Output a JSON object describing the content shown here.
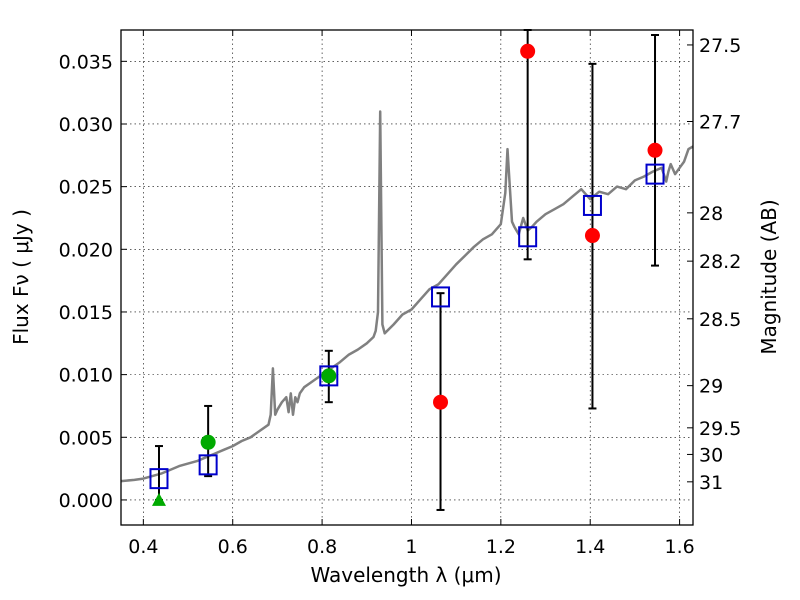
{
  "chart_data": {
    "type": "scatter",
    "title": "",
    "xlabel": "Wavelength  λ (μm)",
    "ylabel": "Flux  Fν  ( μJy )",
    "ylabel_right": "Magnitude (AB)",
    "xlim": [
      0.35,
      1.63
    ],
    "ylim": [
      -0.002,
      0.0375
    ],
    "grid": true,
    "x_ticks": [
      {
        "value": 0.4,
        "label": "0.4"
      },
      {
        "value": 0.6,
        "label": "0.6"
      },
      {
        "value": 0.8,
        "label": "0.8"
      },
      {
        "value": 1.0,
        "label": "1"
      },
      {
        "value": 1.2,
        "label": "1.2"
      },
      {
        "value": 1.4,
        "label": "1.4"
      },
      {
        "value": 1.6,
        "label": "1.6"
      }
    ],
    "y_ticks": [
      {
        "value": 0.0,
        "label": "0.000"
      },
      {
        "value": 0.005,
        "label": "0.005"
      },
      {
        "value": 0.01,
        "label": "0.010"
      },
      {
        "value": 0.015,
        "label": "0.015"
      },
      {
        "value": 0.02,
        "label": "0.020"
      },
      {
        "value": 0.025,
        "label": "0.025"
      },
      {
        "value": 0.03,
        "label": "0.030"
      },
      {
        "value": 0.035,
        "label": "0.035"
      }
    ],
    "right_ticks": [
      {
        "value": 27.5,
        "label": "27.5"
      },
      {
        "value": 27.7,
        "label": "27.7"
      },
      {
        "value": 28,
        "label": "28"
      },
      {
        "value": 28.2,
        "label": "28.2"
      },
      {
        "value": 28.5,
        "label": "28.5"
      },
      {
        "value": 29,
        "label": "29"
      },
      {
        "value": 29.5,
        "label": "29.5"
      },
      {
        "value": 30,
        "label": "30"
      },
      {
        "value": 31,
        "label": "31"
      }
    ],
    "spectrum": {
      "color": "#808080",
      "x": [
        0.35,
        0.38,
        0.4,
        0.42,
        0.44,
        0.46,
        0.48,
        0.5,
        0.52,
        0.54,
        0.56,
        0.58,
        0.6,
        0.62,
        0.64,
        0.66,
        0.68,
        0.685,
        0.69,
        0.695,
        0.7,
        0.71,
        0.72,
        0.725,
        0.73,
        0.735,
        0.74,
        0.745,
        0.75,
        0.76,
        0.78,
        0.8,
        0.82,
        0.84,
        0.86,
        0.88,
        0.9,
        0.915,
        0.92,
        0.925,
        0.93,
        0.935,
        0.94,
        0.96,
        0.98,
        1.0,
        1.02,
        1.04,
        1.06,
        1.08,
        1.1,
        1.12,
        1.14,
        1.16,
        1.18,
        1.2,
        1.21,
        1.215,
        1.22,
        1.225,
        1.23,
        1.24,
        1.25,
        1.26,
        1.27,
        1.28,
        1.3,
        1.32,
        1.34,
        1.36,
        1.38,
        1.4,
        1.42,
        1.44,
        1.46,
        1.48,
        1.5,
        1.52,
        1.54,
        1.56,
        1.57,
        1.575,
        1.58,
        1.59,
        1.6,
        1.61,
        1.62,
        1.63
      ],
      "y": [
        0.0015,
        0.0016,
        0.0017,
        0.0019,
        0.0021,
        0.0024,
        0.0027,
        0.0029,
        0.0031,
        0.0034,
        0.0037,
        0.004,
        0.0043,
        0.0047,
        0.005,
        0.0055,
        0.006,
        0.0068,
        0.0105,
        0.0068,
        0.0072,
        0.0078,
        0.0082,
        0.007,
        0.0085,
        0.0068,
        0.0082,
        0.0078,
        0.0085,
        0.009,
        0.0095,
        0.01,
        0.0105,
        0.011,
        0.0116,
        0.012,
        0.0125,
        0.013,
        0.0135,
        0.015,
        0.031,
        0.014,
        0.0133,
        0.014,
        0.0148,
        0.0152,
        0.016,
        0.0168,
        0.0172,
        0.018,
        0.0188,
        0.0195,
        0.0202,
        0.0208,
        0.0212,
        0.022,
        0.0245,
        0.028,
        0.025,
        0.0222,
        0.0218,
        0.0212,
        0.0225,
        0.0215,
        0.0218,
        0.0222,
        0.0228,
        0.0232,
        0.0236,
        0.0242,
        0.0248,
        0.024,
        0.0246,
        0.0244,
        0.025,
        0.0248,
        0.0255,
        0.0258,
        0.0262,
        0.0265,
        0.0254,
        0.0262,
        0.0268,
        0.026,
        0.0265,
        0.027,
        0.028,
        0.0282
      ]
    },
    "model_points": {
      "marker": "open-square",
      "color": "#0000cc",
      "x": [
        0.435,
        0.545,
        0.815,
        1.065,
        1.26,
        1.405,
        1.545
      ],
      "y": [
        0.0017,
        0.0028,
        0.0099,
        0.0162,
        0.021,
        0.0235,
        0.026
      ]
    },
    "detections": {
      "marker": "circle",
      "color": "#00aa00",
      "x": [
        0.545,
        0.815
      ],
      "y": [
        0.0046,
        0.0099
      ]
    },
    "non_detections": {
      "marker": "circle",
      "color": "#ff0000",
      "x": [
        1.065,
        1.26,
        1.405,
        1.545
      ],
      "y": [
        0.0078,
        0.0358,
        0.0211,
        0.0279
      ]
    },
    "upper_limit": {
      "marker": "triangle",
      "color": "#00aa00",
      "x": [
        0.435
      ],
      "y": [
        0.0
      ]
    },
    "error_bars": [
      {
        "x": 0.435,
        "low": 0.0,
        "high": 0.0043
      },
      {
        "x": 0.545,
        "low": 0.0019,
        "high": 0.0075
      },
      {
        "x": 0.815,
        "low": 0.0078,
        "high": 0.0119
      },
      {
        "x": 1.065,
        "low": -0.0008,
        "high": 0.0165
      },
      {
        "x": 1.26,
        "low": 0.0192,
        "high": 0.0375
      },
      {
        "x": 1.405,
        "low": 0.0073,
        "high": 0.0348
      },
      {
        "x": 1.545,
        "low": 0.0187,
        "high": 0.0371
      }
    ]
  }
}
